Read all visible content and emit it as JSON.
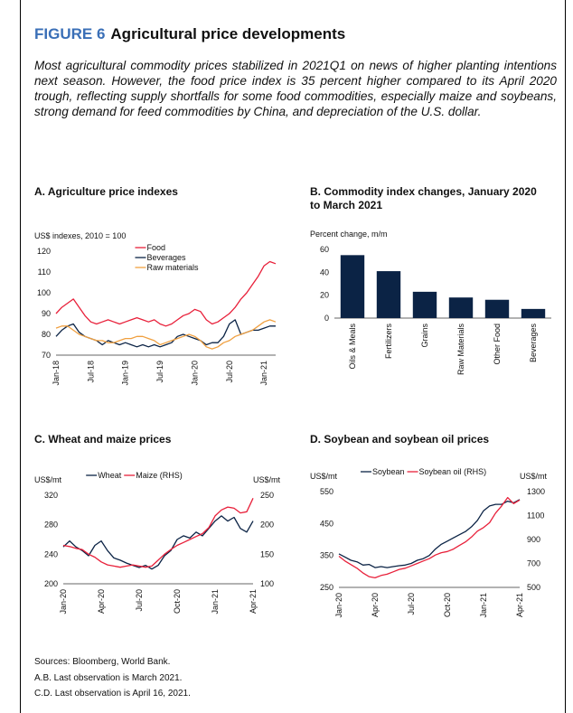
{
  "figure_label": "FIGURE 6",
  "title": "Agricultural price developments",
  "description": "Most agricultural commodity prices stabilized in 2021Q1 on news of higher planting intentions next season. However, the food price index is 35 percent higher compared to its April 2020 trough, reflecting supply shortfalls for some food commodities, especially maize and soybeans, strong demand for feed commodities by China, and depreciation of the U.S. dollar.",
  "notes": [
    "Sources: Bloomberg, World Bank.",
    "A.B. Last observation is March 2021.",
    "C.D. Last observation is April 16, 2021."
  ],
  "chart_data": [
    {
      "type": "line",
      "title": "A. Agriculture price indexes",
      "ylabel": "US$ indexes, 2010 = 100",
      "categories": [
        "Jan-18",
        null,
        null,
        null,
        null,
        null,
        "Jul-18",
        null,
        null,
        null,
        null,
        null,
        "Jan-19",
        null,
        null,
        null,
        null,
        null,
        "Jul-19",
        null,
        null,
        null,
        null,
        null,
        "Jan-20",
        null,
        null,
        null,
        null,
        null,
        "Jul-20",
        null,
        null,
        null,
        null,
        null,
        "Jan-21",
        null,
        null
      ],
      "series": [
        {
          "name": "Food",
          "color": "#e8203a",
          "values": [
            90,
            93,
            95,
            97,
            93,
            89,
            86,
            85,
            86,
            87,
            86,
            85,
            86,
            87,
            88,
            87,
            86,
            87,
            85,
            84,
            85,
            87,
            89,
            90,
            92,
            91,
            87,
            85,
            86,
            88,
            90,
            93,
            97,
            100,
            104,
            108,
            113,
            115,
            114
          ]
        },
        {
          "name": "Beverages",
          "color": "#0b2345",
          "values": [
            79,
            82,
            84,
            85,
            81,
            79,
            78,
            77,
            75,
            77,
            76,
            75,
            76,
            75,
            74,
            75,
            74,
            75,
            74,
            75,
            76,
            79,
            80,
            79,
            78,
            77,
            75,
            76,
            76,
            79,
            85,
            87,
            80,
            81,
            82,
            82,
            83,
            84,
            84
          ]
        },
        {
          "name": "Raw materials",
          "color": "#f0a040",
          "values": [
            83,
            84,
            84,
            82,
            80,
            79,
            78,
            77,
            77,
            76,
            76,
            77,
            78,
            78,
            79,
            79,
            78,
            77,
            75,
            76,
            77,
            78,
            79,
            80,
            79,
            77,
            74,
            73,
            74,
            76,
            77,
            79,
            80,
            81,
            82,
            84,
            86,
            87,
            86
          ]
        }
      ],
      "ylim": [
        70,
        120
      ],
      "yticks": [
        70,
        80,
        90,
        100,
        110,
        120
      ],
      "legend": "upper center",
      "legend_orientation": "vertical"
    },
    {
      "type": "bar",
      "title": "B. Commodity index changes, January 2020 to March 2021",
      "ylabel": "Percent change, m/m",
      "categories": [
        "Oils & Meals",
        "Fertilizers",
        "Grains",
        "Raw Materials",
        "Other Food",
        "Beverages"
      ],
      "values": [
        55,
        41,
        23,
        18,
        16,
        8
      ],
      "color": "#0b2345",
      "ylim": [
        0,
        60
      ],
      "yticks": [
        0,
        20,
        40,
        60
      ]
    },
    {
      "type": "line",
      "title": "C. Wheat and maize prices",
      "ylabel": "US$/mt",
      "y2label": "US$/mt",
      "categories": [
        "Jan-20",
        null,
        null,
        null,
        null,
        null,
        "Apr-20",
        null,
        null,
        null,
        null,
        null,
        "Jul-20",
        null,
        null,
        null,
        null,
        null,
        "Oct-20",
        null,
        null,
        null,
        null,
        null,
        "Jan-21",
        null,
        null,
        null,
        null,
        null,
        "Apr-21"
      ],
      "series": [
        {
          "name": "Wheat",
          "color": "#0b2345",
          "values": [
            250,
            258,
            250,
            245,
            238,
            252,
            258,
            245,
            235,
            232,
            228,
            225,
            222,
            225,
            220,
            225,
            238,
            245,
            260,
            265,
            262,
            270,
            265,
            275,
            285,
            292,
            285,
            290,
            275,
            270,
            285
          ]
        },
        {
          "name": "Maize (RHS)",
          "color": "#e8203a",
          "axis": "y2",
          "values": [
            165,
            163,
            160,
            158,
            150,
            145,
            137,
            132,
            130,
            128,
            130,
            132,
            130,
            128,
            130,
            140,
            150,
            158,
            165,
            170,
            175,
            180,
            185,
            195,
            215,
            225,
            230,
            228,
            220,
            222,
            245
          ]
        }
      ],
      "ylim": [
        200,
        320
      ],
      "yticks": [
        200,
        240,
        280,
        320
      ],
      "y2lim": [
        100,
        250
      ],
      "y2ticks": [
        100,
        150,
        200,
        250
      ],
      "legend": "upper center",
      "legend_orientation": "horizontal"
    },
    {
      "type": "line",
      "title": "D. Soybean and soybean oil prices",
      "ylabel": "US$/mt",
      "y2label": "US$/mt",
      "categories": [
        "Jan-20",
        null,
        null,
        null,
        null,
        null,
        "Apr-20",
        null,
        null,
        null,
        null,
        null,
        "Jul-20",
        null,
        null,
        null,
        null,
        null,
        "Oct-20",
        null,
        null,
        null,
        null,
        null,
        "Jan-21",
        null,
        null,
        null,
        null,
        null,
        "Apr-21"
      ],
      "series": [
        {
          "name": "Soybean",
          "color": "#0b2345",
          "values": [
            355,
            345,
            335,
            330,
            320,
            322,
            312,
            315,
            312,
            315,
            318,
            320,
            325,
            335,
            340,
            350,
            370,
            385,
            395,
            405,
            415,
            425,
            440,
            460,
            490,
            505,
            510,
            510,
            520,
            515,
            525
          ]
        },
        {
          "name": "Soybean oil (RHS)",
          "color": "#e8203a",
          "axis": "y2",
          "values": [
            760,
            720,
            690,
            660,
            620,
            590,
            580,
            600,
            610,
            630,
            650,
            660,
            680,
            700,
            720,
            740,
            770,
            790,
            800,
            820,
            850,
            880,
            920,
            970,
            1000,
            1040,
            1120,
            1180,
            1250,
            1200,
            1230
          ]
        }
      ],
      "ylim": [
        250,
        550
      ],
      "yticks": [
        250,
        350,
        450,
        550
      ],
      "y2lim": [
        500,
        1300
      ],
      "y2ticks": [
        500,
        700,
        900,
        1100,
        1300
      ],
      "legend": "upper center",
      "legend_orientation": "horizontal"
    }
  ]
}
